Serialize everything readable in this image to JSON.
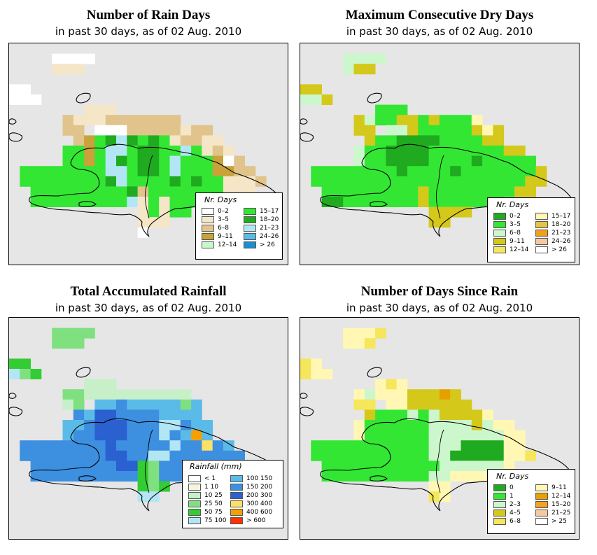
{
  "panels": [
    {
      "title": "Number of Rain Days",
      "subtitle": "in past 30 days, as of  02 Aug. 2010",
      "legend_title": "Nr. Days",
      "legend": [
        {
          "label": "0–2",
          "color": "#ffffff"
        },
        {
          "label": "3–5",
          "color": "#f5e6c8"
        },
        {
          "label": "6–8",
          "color": "#e0c48c"
        },
        {
          "label": "9–11",
          "color": "#c9a23a"
        },
        {
          "label": "12–14",
          "color": "#ccf7cc"
        },
        {
          "label": "15–17",
          "color": "#33e633"
        },
        {
          "label": "18–20",
          "color": "#1faa1f"
        },
        {
          "label": "21–23",
          "color": "#b3e6f5"
        },
        {
          "label": "24–26",
          "color": "#5bbbe8"
        },
        {
          "label": "> 26",
          "color": "#1a8fcc"
        }
      ],
      "grid": [
        "..........................",
        "....aaaa..................",
        "....bbb...................",
        "..........................",
        "aa........................",
        "aaa.......................",
        ".......bbb................",
        ".....cbbbccccccc..........",
        ".....cc.aaacccccbcc.......",
        "......cdfghgfgfbccbb......",
        ".....ffdfhhfggffhfbcb.....",
        ".....ffdfhgfggfhfffdac....",
        ".ffffffffhhfggfhfffddcc...",
        ".ffffffffghffffgfgffbbbc..",
        "..fffffffffgcfffffffbbb...",
        "..fffffffffhbfbfffff......",
        "............bfbff.........",
        "............bbb...........",
        "............a............."
      ]
    },
    {
      "title": "Maximum Consecutive Dry Days",
      "subtitle": "in past 30 days, as of  02 Aug. 2010",
      "legend_title": "Nr. Days",
      "legend": [
        {
          "label": "0–2",
          "color": "#1faa1f"
        },
        {
          "label": "3–5",
          "color": "#33e633"
        },
        {
          "label": "6–8",
          "color": "#ccf7cc"
        },
        {
          "label": "9–11",
          "color": "#d4c81a"
        },
        {
          "label": "12–14",
          "color": "#f5e65c"
        },
        {
          "label": "15–17",
          "color": "#fff7b3"
        },
        {
          "label": "18–20",
          "color": "#e6c24a"
        },
        {
          "label": "21–23",
          "color": "#f0a01a"
        },
        {
          "label": "24–26",
          "color": "#f7c8a0"
        },
        {
          "label": "> 26",
          "color": "#ffffff"
        }
      ],
      "grid": [
        "..........................",
        "....cccc..................",
        "....cdd...................",
        "..........................",
        "dd........................",
        "ccd.......................",
        ".......bbb................",
        ".....dcbbddbdbbbf.........",
        ".....dd.ccdbbbbbdfd.......",
        "......dbbaaaabbbbdd.......",
        ".....cbbaaaabbbbbbbdd.....",
        ".....cbbaaaabbbbabbbbb....",
        ".bbbbbbbbabbbbabbbbbbbd...",
        ".bbbbbbbbbbbbbbbbbbbbdd...",
        "..bbbbbbbbbdbbbbbbbbdd....",
        "..aabbbbbbbdbbbbbbb.......",
        "............dddd..........",
        "............dd............",
        "..........................",
        ".........................."
      ]
    },
    {
      "title": "Total Accumulated Rainfall",
      "subtitle": "in past 30 days, as of  02 Aug. 2010",
      "legend_title": "Rainfall (mm)",
      "legend": [
        {
          "label": "< 1",
          "color": "#ffffff"
        },
        {
          "label": "1    10",
          "color": "#f5f5dc"
        },
        {
          "label": "10    25",
          "color": "#c8f0c8"
        },
        {
          "label": "25    50",
          "color": "#7fe07f"
        },
        {
          "label": "50    75",
          "color": "#33cc33"
        },
        {
          "label": "75  100",
          "color": "#b3e6f5"
        },
        {
          "label": "100  150",
          "color": "#5bbbe8"
        },
        {
          "label": "150  200",
          "color": "#3d8fe0"
        },
        {
          "label": "200  300",
          "color": "#2a60d0"
        },
        {
          "label": "300  400",
          "color": "#ffe066"
        },
        {
          "label": "400  600",
          "color": "#f5a000"
        },
        {
          "label": "> 600",
          "color": "#ff3300"
        }
      ],
      "grid": [
        "..........................",
        "....dddd..................",
        "....ddd...................",
        "..........................",
        "ee........................",
        "fde.......................",
        ".......ccc................",
        ".....ddcccccccccc.........",
        ".....cd.gghgggggdg........",
        "......hgiihhhhgggg........",
        ".....gghiiihhhffhgg.......",
        ".....ghhiiihhhfhgkg.......",
        ".hhhhhhhhihhhhhfhhjhg.....",
        ".hhhhhhhhiihhffhhhhhhh....",
        "..hhhhhhhhiiedhhhhhhh.....",
        "..hhhhhhhhhhedhhhhh.......",
        "............ede...........",
        "............ff............",
        "..........................",
        ".........................."
      ]
    },
    {
      "title": "Number of Days Since Rain",
      "subtitle": "in past 30 days, as of  02 Aug. 2010",
      "legend_title": "Nr. Days",
      "legend": [
        {
          "label": "0",
          "color": "#1faa1f"
        },
        {
          "label": "1",
          "color": "#33e633"
        },
        {
          "label": "2–3",
          "color": "#ccf7cc"
        },
        {
          "label": "4–5",
          "color": "#d4c81a"
        },
        {
          "label": "6–8",
          "color": "#f5e65c"
        },
        {
          "label": "9–11",
          "color": "#fff7b3"
        },
        {
          "label": "12–14",
          "color": "#e6a000"
        },
        {
          "label": "15–20",
          "color": "#f5a020"
        },
        {
          "label": "21–25",
          "color": "#f7c8a0"
        },
        {
          "label": "> 25",
          "color": "#ffffff"
        }
      ],
      "grid": [
        "..........................",
        "....fffe..................",
        "....ffe...................",
        "..........................",
        "ef........................",
        "eff.......................",
        ".......fef................",
        ".....fcfffdddgd...........",
        ".....ee.ffdddddd..........",
        "......dbbbcbcddddf........",
        ".....fbbbbbbccccdcff......",
        ".....fbbbbbbcccccccff.....",
        ".bbbbbbbbbbbcccaaaaff.....",
        ".bbbbbbbbbbbccaaaaaffe....",
        "..bbbbbbbbbbbccccccf......",
        "..bbbbbbbbbbccffff........",
        "............ff............",
        "............ef............",
        "..........................",
        ".........................."
      ]
    }
  ]
}
